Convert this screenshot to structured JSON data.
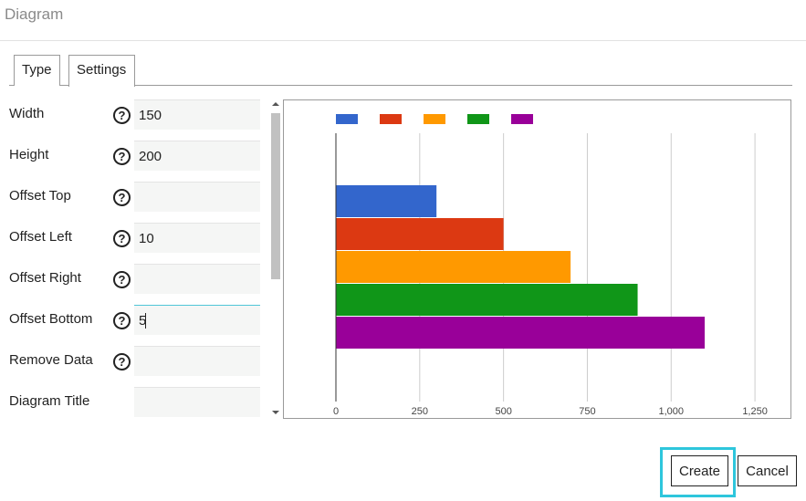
{
  "dialog": {
    "title": "Diagram"
  },
  "tabs": [
    {
      "label": "Type",
      "active": false
    },
    {
      "label": "Settings",
      "active": true
    }
  ],
  "fields": [
    {
      "label": "Width",
      "value": "150",
      "help": "?"
    },
    {
      "label": "Height",
      "value": "200",
      "help": "?"
    },
    {
      "label": "Offset Top",
      "value": "",
      "help": "?"
    },
    {
      "label": "Offset Left",
      "value": "10",
      "help": "?"
    },
    {
      "label": "Offset Right",
      "value": "",
      "help": "?"
    },
    {
      "label": "Offset Bottom",
      "value": "5",
      "help": "?"
    },
    {
      "label": "Remove Data",
      "value": "",
      "help": "?"
    },
    {
      "label": "Diagram Title",
      "value": ""
    }
  ],
  "chart_data": {
    "type": "bar",
    "orientation": "horizontal",
    "xlim": [
      0,
      1375
    ],
    "ticks": [
      0,
      250,
      500,
      750,
      1000,
      1250
    ],
    "tick_labels": [
      "0",
      "250",
      "500",
      "750",
      "1,000",
      "1,250"
    ],
    "grid": true,
    "legend_placement": "top-left",
    "series": [
      {
        "value": 300,
        "color": "#3366cc"
      },
      {
        "value": 500,
        "color": "#dc3912"
      },
      {
        "value": 700,
        "color": "#ff9900"
      },
      {
        "value": 900,
        "color": "#109618"
      },
      {
        "value": 1100,
        "color": "#990099"
      }
    ]
  },
  "buttons": {
    "create": "Create",
    "cancel": "Cancel"
  }
}
